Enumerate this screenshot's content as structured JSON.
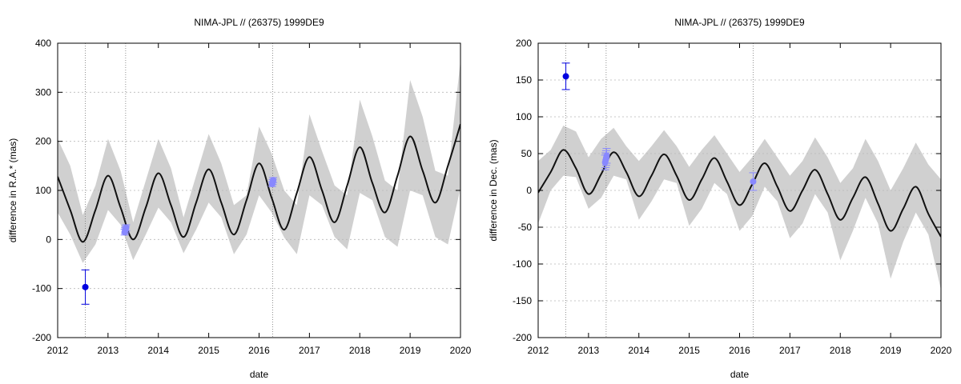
{
  "chart_data": [
    {
      "type": "line",
      "title": "NIMA-JPL // (26375) 1999DE9",
      "xlabel": "date",
      "ylabel": "difference in R.A.* (mas)",
      "xlim": [
        2012,
        2020
      ],
      "ylim": [
        -200,
        400
      ],
      "xticks": [
        2012,
        2013,
        2014,
        2015,
        2016,
        2017,
        2018,
        2019,
        2020
      ],
      "yticks": [
        -200,
        -100,
        0,
        100,
        200,
        300,
        400
      ],
      "grid": true,
      "vlines": [
        2012.55,
        2013.35,
        2016.27
      ],
      "series": [
        {
          "role": "uncertainty-band",
          "color": "#d0d0d0",
          "x": [
            2012.0,
            2012.25,
            2012.5,
            2012.75,
            2013.0,
            2013.25,
            2013.5,
            2013.75,
            2014.0,
            2014.25,
            2014.5,
            2014.75,
            2015.0,
            2015.25,
            2015.5,
            2015.75,
            2016.0,
            2016.25,
            2016.5,
            2016.75,
            2017.0,
            2017.25,
            2017.5,
            2017.75,
            2018.0,
            2018.25,
            2018.5,
            2018.75,
            2019.0,
            2019.25,
            2019.5,
            2019.75,
            2020.0
          ],
          "lower": [
            55,
            10,
            -48,
            -10,
            60,
            30,
            -42,
            10,
            65,
            35,
            -28,
            20,
            75,
            45,
            -30,
            10,
            90,
            55,
            4,
            -30,
            90,
            70,
            5,
            -20,
            95,
            80,
            5,
            -15,
            100,
            90,
            5,
            -10,
            105
          ],
          "upper": [
            205,
            150,
            50,
            110,
            205,
            140,
            35,
            120,
            205,
            145,
            45,
            130,
            215,
            155,
            70,
            90,
            230,
            175,
            100,
            70,
            255,
            180,
            110,
            90,
            285,
            210,
            120,
            100,
            325,
            250,
            140,
            130,
            365
          ]
        },
        {
          "role": "model",
          "color": "#111111",
          "x": [
            2012.0,
            2012.25,
            2012.5,
            2012.75,
            2013.0,
            2013.25,
            2013.5,
            2013.75,
            2014.0,
            2014.25,
            2014.5,
            2014.75,
            2015.0,
            2015.25,
            2015.5,
            2015.75,
            2016.0,
            2016.25,
            2016.5,
            2016.75,
            2017.0,
            2017.25,
            2017.5,
            2017.75,
            2018.0,
            2018.25,
            2018.5,
            2018.75,
            2019.0,
            2019.25,
            2019.5,
            2019.75,
            2020.0
          ],
          "y": [
            128,
            60,
            -5,
            60,
            130,
            65,
            0,
            65,
            135,
            70,
            5,
            75,
            143,
            75,
            10,
            80,
            155,
            85,
            20,
            95,
            168,
            100,
            35,
            110,
            188,
            115,
            55,
            130,
            210,
            140,
            75,
            150,
            235
          ]
        },
        {
          "role": "observation",
          "color": "#0000e0",
          "points": [
            {
              "x": 2012.55,
              "y": -97,
              "err": 35
            }
          ]
        },
        {
          "role": "observation",
          "color": "#8888ff",
          "points": [
            {
              "x": 2013.33,
              "y": 15,
              "err": 6
            },
            {
              "x": 2013.34,
              "y": 18,
              "err": 6
            },
            {
              "x": 2013.35,
              "y": 21,
              "err": 6
            },
            {
              "x": 2013.36,
              "y": 24,
              "err": 6
            },
            {
              "x": 2016.26,
              "y": 113,
              "err": 5
            },
            {
              "x": 2016.27,
              "y": 117,
              "err": 5
            },
            {
              "x": 2016.28,
              "y": 121,
              "err": 5
            }
          ]
        }
      ]
    },
    {
      "type": "line",
      "title": "NIMA-JPL // (26375) 1999DE9",
      "xlabel": "date",
      "ylabel": "difference in Dec. (mas)",
      "xlim": [
        2012,
        2020
      ],
      "ylim": [
        -200,
        200
      ],
      "xticks": [
        2012,
        2013,
        2014,
        2015,
        2016,
        2017,
        2018,
        2019,
        2020
      ],
      "yticks": [
        -200,
        -150,
        -100,
        -50,
        0,
        50,
        100,
        150,
        200
      ],
      "grid": true,
      "vlines": [
        2012.55,
        2013.35,
        2016.27
      ],
      "series": [
        {
          "role": "uncertainty-band",
          "color": "#d0d0d0",
          "x": [
            2012.0,
            2012.25,
            2012.5,
            2012.75,
            2013.0,
            2013.25,
            2013.5,
            2013.75,
            2014.0,
            2014.25,
            2014.5,
            2014.75,
            2015.0,
            2015.25,
            2015.5,
            2015.75,
            2016.0,
            2016.25,
            2016.5,
            2016.75,
            2017.0,
            2017.25,
            2017.5,
            2017.75,
            2018.0,
            2018.25,
            2018.5,
            2018.75,
            2019.0,
            2019.25,
            2019.5,
            2019.75,
            2020.0
          ],
          "lower": [
            -45,
            0,
            20,
            18,
            -25,
            -10,
            20,
            15,
            -40,
            -15,
            15,
            10,
            -48,
            -25,
            10,
            -5,
            -55,
            -35,
            5,
            -15,
            -65,
            -45,
            -5,
            -30,
            -95,
            -55,
            -10,
            -45,
            -120,
            -70,
            -30,
            -60,
            -135
          ],
          "upper": [
            40,
            55,
            88,
            80,
            45,
            70,
            85,
            60,
            40,
            60,
            82,
            60,
            32,
            55,
            75,
            50,
            25,
            45,
            70,
            45,
            20,
            40,
            72,
            45,
            10,
            30,
            70,
            40,
            0,
            30,
            65,
            35,
            15
          ]
        },
        {
          "role": "model",
          "color": "#111111",
          "x": [
            2012.0,
            2012.25,
            2012.5,
            2012.75,
            2013.0,
            2013.25,
            2013.5,
            2013.75,
            2014.0,
            2014.25,
            2014.5,
            2014.75,
            2015.0,
            2015.25,
            2015.5,
            2015.75,
            2016.0,
            2016.25,
            2016.5,
            2016.75,
            2017.0,
            2017.25,
            2017.5,
            2017.75,
            2018.0,
            2018.25,
            2018.5,
            2018.75,
            2019.0,
            2019.25,
            2019.5,
            2019.75,
            2020.0
          ],
          "y": [
            -3,
            25,
            55,
            30,
            -5,
            22,
            52,
            25,
            -8,
            20,
            49,
            20,
            -13,
            15,
            44,
            12,
            -20,
            8,
            37,
            5,
            -28,
            0,
            28,
            -5,
            -40,
            -10,
            18,
            -18,
            -55,
            -25,
            5,
            -32,
            -63
          ]
        },
        {
          "role": "observation",
          "color": "#0000e0",
          "points": [
            {
              "x": 2012.55,
              "y": 155,
              "err": 18
            }
          ]
        },
        {
          "role": "observation",
          "color": "#8888ff",
          "points": [
            {
              "x": 2013.33,
              "y": 38,
              "err": 10
            },
            {
              "x": 2013.34,
              "y": 41,
              "err": 10
            },
            {
              "x": 2013.35,
              "y": 44,
              "err": 10
            },
            {
              "x": 2013.36,
              "y": 47,
              "err": 10
            },
            {
              "x": 2016.27,
              "y": 12,
              "err": 12
            }
          ]
        }
      ]
    }
  ]
}
